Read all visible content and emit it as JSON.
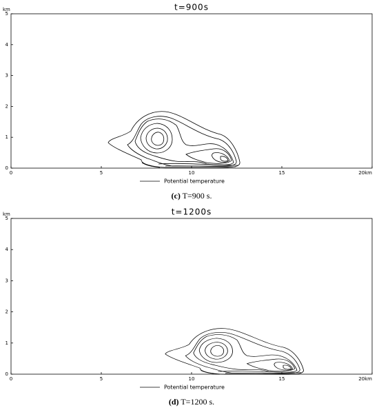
{
  "chart_data": [
    {
      "type": "contour",
      "title": "t=900s",
      "xlim": [
        0,
        20
      ],
      "xticks": [
        0,
        5,
        10,
        15,
        {
          "value": 20,
          "label": "20km"
        }
      ],
      "ylim": [
        0,
        5
      ],
      "yticks": [
        0,
        1,
        2,
        3,
        4,
        5
      ],
      "y_unit": "km",
      "series": [
        {
          "name": "Potential temperature",
          "color": "#000000"
        }
      ],
      "caption": {
        "label": "(c)",
        "text": "T=900 s."
      }
    },
    {
      "type": "contour",
      "title": "t=1200s",
      "xlim": [
        0,
        20
      ],
      "xticks": [
        0,
        5,
        10,
        15,
        {
          "value": 20,
          "label": "20km"
        }
      ],
      "ylim": [
        0,
        5
      ],
      "yticks": [
        0,
        1,
        2,
        3,
        4,
        5
      ],
      "y_unit": "km",
      "series": [
        {
          "name": "Potential temperature",
          "color": "#000000"
        }
      ],
      "caption": {
        "label": "(d)",
        "text": "T=1200 s."
      }
    }
  ]
}
